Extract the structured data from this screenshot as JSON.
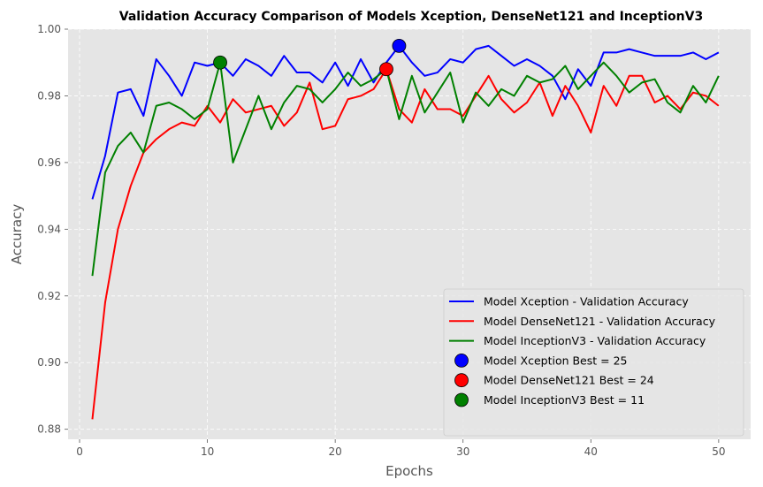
{
  "chart_data": {
    "type": "line",
    "title": "Validation Accuracy Comparison of Models Xception, DenseNet121 and InceptionV3",
    "xlabel": "Epochs",
    "ylabel": "Accuracy",
    "xlim": [
      -0.9,
      52.5
    ],
    "ylim": [
      0.877,
      1.0
    ],
    "xticks": [
      0,
      10,
      20,
      30,
      40,
      50
    ],
    "yticks": [
      0.88,
      0.9,
      0.92,
      0.94,
      0.96,
      0.98,
      1.0
    ],
    "ytick_labels": [
      "0.88",
      "0.90",
      "0.92",
      "0.94",
      "0.96",
      "0.98",
      "1.00"
    ],
    "grid": true,
    "legend_position": "bottom-right",
    "x": [
      1,
      2,
      3,
      4,
      5,
      6,
      7,
      8,
      9,
      10,
      11,
      12,
      13,
      14,
      15,
      16,
      17,
      18,
      19,
      20,
      21,
      22,
      23,
      24,
      25,
      26,
      27,
      28,
      29,
      30,
      31,
      32,
      33,
      34,
      35,
      36,
      37,
      38,
      39,
      40,
      41,
      42,
      43,
      44,
      45,
      46,
      47,
      48,
      49,
      50
    ],
    "series": [
      {
        "name": "Model Xception - Validation Accuracy",
        "color": "#0000ff",
        "values": [
          0.949,
          0.962,
          0.981,
          0.982,
          0.974,
          0.991,
          0.986,
          0.98,
          0.99,
          0.989,
          0.99,
          0.986,
          0.991,
          0.989,
          0.986,
          0.992,
          0.987,
          0.987,
          0.984,
          0.99,
          0.983,
          0.991,
          0.984,
          0.99,
          0.995,
          0.99,
          0.986,
          0.987,
          0.991,
          0.99,
          0.994,
          0.995,
          0.992,
          0.989,
          0.991,
          0.989,
          0.986,
          0.979,
          0.988,
          0.983,
          0.993,
          0.993,
          0.994,
          0.993,
          0.992,
          0.992,
          0.992,
          0.993,
          0.991,
          0.993
        ]
      },
      {
        "name": "Model DenseNet121 - Validation Accuracy",
        "color": "#ff0000",
        "values": [
          0.883,
          0.918,
          0.94,
          0.953,
          0.963,
          0.967,
          0.97,
          0.972,
          0.971,
          0.977,
          0.972,
          0.979,
          0.975,
          0.976,
          0.977,
          0.971,
          0.975,
          0.984,
          0.97,
          0.971,
          0.979,
          0.98,
          0.982,
          0.988,
          0.976,
          0.972,
          0.982,
          0.976,
          0.976,
          0.974,
          0.98,
          0.986,
          0.979,
          0.975,
          0.978,
          0.984,
          0.974,
          0.983,
          0.977,
          0.969,
          0.983,
          0.977,
          0.986,
          0.986,
          0.978,
          0.98,
          0.976,
          0.981,
          0.98,
          0.977
        ]
      },
      {
        "name": "Model InceptionV3 - Validation Accuracy",
        "color": "#008000",
        "values": [
          0.926,
          0.957,
          0.965,
          0.969,
          0.963,
          0.977,
          0.978,
          0.976,
          0.973,
          0.976,
          0.99,
          0.96,
          0.97,
          0.98,
          0.97,
          0.978,
          0.983,
          0.982,
          0.978,
          0.982,
          0.987,
          0.983,
          0.985,
          0.988,
          0.973,
          0.986,
          0.975,
          0.981,
          0.987,
          0.972,
          0.981,
          0.977,
          0.982,
          0.98,
          0.986,
          0.984,
          0.985,
          0.989,
          0.982,
          0.986,
          0.99,
          0.986,
          0.981,
          0.984,
          0.985,
          0.978,
          0.975,
          0.983,
          0.978,
          0.986
        ]
      }
    ],
    "best_points": [
      {
        "name": "Model Xception Best = 25",
        "x": 25,
        "y": 0.995,
        "color": "#0000ff"
      },
      {
        "name": "Model DenseNet121 Best = 24",
        "x": 24,
        "y": 0.988,
        "color": "#ff0000"
      },
      {
        "name": "Model InceptionV3 Best = 11",
        "x": 11,
        "y": 0.99,
        "color": "#008000"
      }
    ]
  }
}
